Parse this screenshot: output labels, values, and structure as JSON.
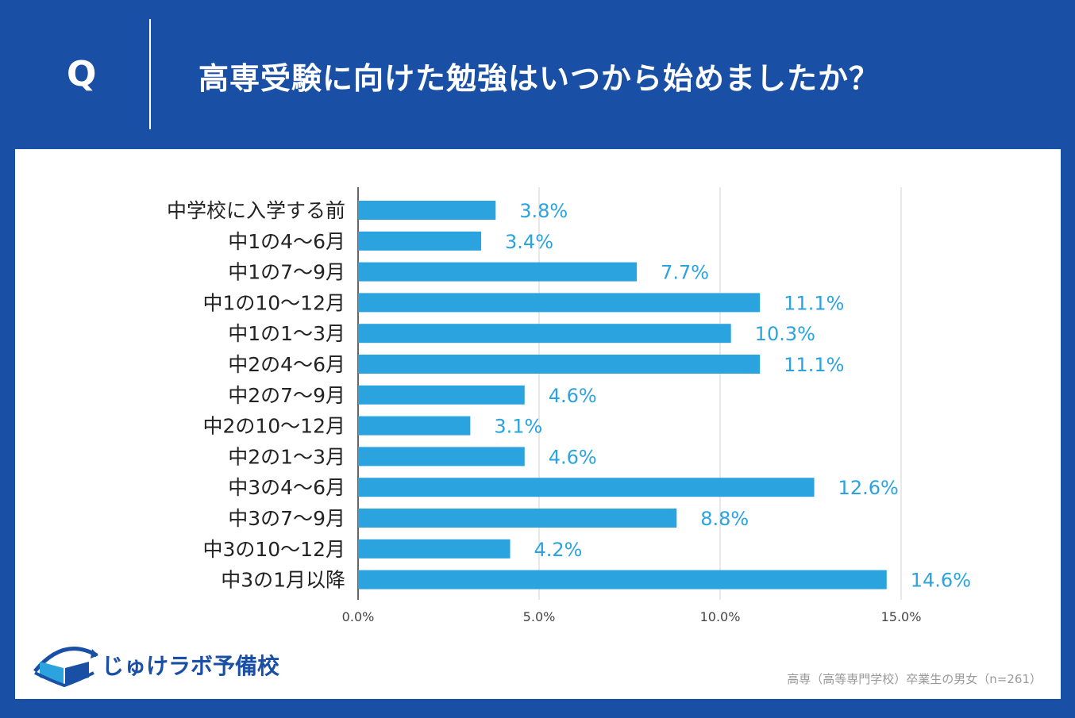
{
  "question": {
    "mark": "Q",
    "title": "高専受験に向けた勉強はいつから始めましたか？"
  },
  "colors": {
    "background": "#1a4fa6",
    "bar": "#2aa3df",
    "label": "#2aa3df",
    "grid": "#d0d0d0"
  },
  "chart_data": {
    "type": "bar",
    "orientation": "horizontal",
    "categories": [
      "中学校に入学する前",
      "中1の4～6月",
      "中1の7～9月",
      "中1の10～12月",
      "中1の1～3月",
      "中2の4～6月",
      "中2の7～9月",
      "中2の10～12月",
      "中2の1～3月",
      "中3の4～6月",
      "中3の7～9月",
      "中3の10～12月",
      "中3の1月以降"
    ],
    "values": [
      3.8,
      3.4,
      7.7,
      11.1,
      10.3,
      11.1,
      4.6,
      3.1,
      4.6,
      12.6,
      8.8,
      4.2,
      14.6
    ],
    "value_labels": [
      "3.8%",
      "3.4%",
      "7.7%",
      "11.1%",
      "10.3%",
      "11.1%",
      "4.6%",
      "3.1%",
      "4.6%",
      "12.6%",
      "8.8%",
      "4.2%",
      "14.6%"
    ],
    "xticks": [
      0,
      5,
      10,
      15
    ],
    "xtick_labels": [
      "0.0%",
      "5.0%",
      "10.0%",
      "15.0%"
    ],
    "xlim": [
      0,
      15
    ],
    "grid": true
  },
  "logo": {
    "name": "じゅけラボ予備校"
  },
  "footnote": "高専（高等専門学校）卒業生の男女（n=261）"
}
